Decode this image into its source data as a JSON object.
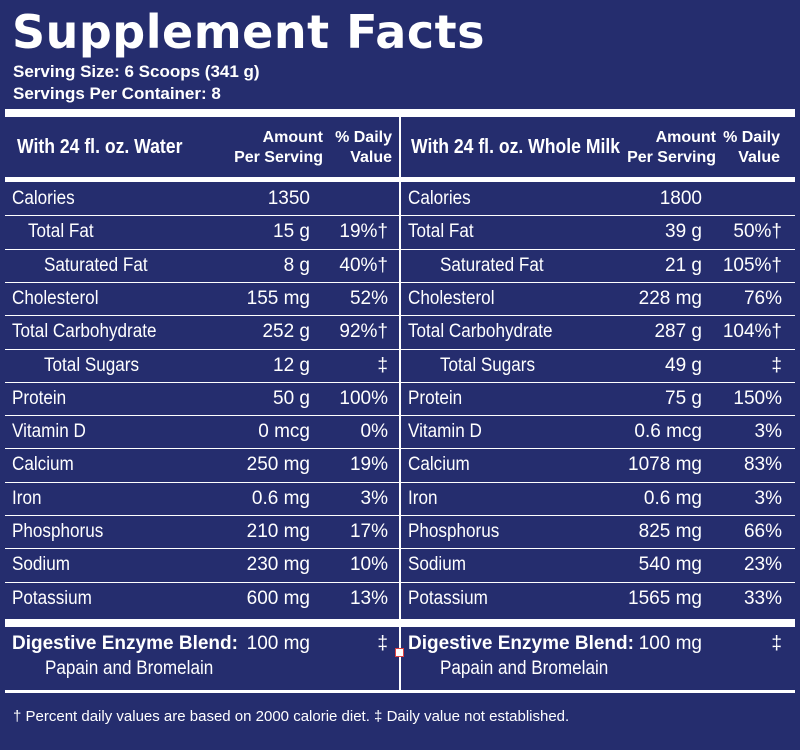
{
  "title": "Supplement Facts",
  "serving_size": "Serving Size: 6 Scoops (341 g)",
  "servings_per_container": "Servings Per Container: 8",
  "left": {
    "header": "With 24 fl. oz. Water",
    "amount_header_1": "Amount",
    "amount_header_2": "Per Serving",
    "dv_header_1": "% Daily",
    "dv_header_2": "Value",
    "rows": [
      {
        "name": "Calories",
        "amount": "1350",
        "dv": ""
      },
      {
        "name": "Total Fat",
        "amount": "15 g",
        "dv": "19%†"
      },
      {
        "name": "Saturated Fat",
        "amount": "8 g",
        "dv": "40%†"
      },
      {
        "name": "Cholesterol",
        "amount": "155 mg",
        "dv": "52%"
      },
      {
        "name": "Total Carbohydrate",
        "amount": "252 g",
        "dv": "92%†"
      },
      {
        "name": "Total Sugars",
        "amount": "12 g",
        "dv": "‡"
      },
      {
        "name": "Protein",
        "amount": "50 g",
        "dv": "100%"
      },
      {
        "name": "Vitamin D",
        "amount": "0 mcg",
        "dv": "0%"
      },
      {
        "name": "Calcium",
        "amount": "250 mg",
        "dv": "19%"
      },
      {
        "name": "Iron",
        "amount": "0.6 mg",
        "dv": "3%"
      },
      {
        "name": "Phosphorus",
        "amount": "210 mg",
        "dv": "17%"
      },
      {
        "name": "Sodium",
        "amount": "230 mg",
        "dv": "10%"
      },
      {
        "name": "Potassium",
        "amount": "600 mg",
        "dv": "13%"
      }
    ],
    "blend": {
      "name": "Digestive Enzyme Blend:",
      "amount": "100 mg",
      "dv": "‡",
      "sub": "Papain and Bromelain"
    }
  },
  "right": {
    "header": "With 24 fl. oz. Whole Milk",
    "amount_header_1": "Amount",
    "amount_header_2": "Per Serving",
    "dv_header_1": "% Daily",
    "dv_header_2": "Value",
    "rows": [
      {
        "name": "Calories",
        "amount": "1800",
        "dv": ""
      },
      {
        "name": "Total Fat",
        "amount": "39 g",
        "dv": "50%†"
      },
      {
        "name": "Saturated Fat",
        "amount": "21 g",
        "dv": "105%†"
      },
      {
        "name": "Cholesterol",
        "amount": "228 mg",
        "dv": "76%"
      },
      {
        "name": "Total Carbohydrate",
        "amount": "287 g",
        "dv": "104%†"
      },
      {
        "name": "Total Sugars",
        "amount": "49 g",
        "dv": "‡"
      },
      {
        "name": "Protein",
        "amount": "75 g",
        "dv": "150%"
      },
      {
        "name": "Vitamin D",
        "amount": "0.6 mcg",
        "dv": "3%"
      },
      {
        "name": "Calcium",
        "amount": "1078 mg",
        "dv": "83%"
      },
      {
        "name": "Iron",
        "amount": "0.6 mg",
        "dv": "3%"
      },
      {
        "name": "Phosphorus",
        "amount": "825 mg",
        "dv": "66%"
      },
      {
        "name": "Sodium",
        "amount": "540 mg",
        "dv": "23%"
      },
      {
        "name": "Potassium",
        "amount": "1565 mg",
        "dv": "33%"
      }
    ],
    "blend": {
      "name": "Digestive Enzyme Blend:",
      "amount": "100 mg",
      "dv": "‡",
      "sub": "Papain and Bromelain"
    }
  },
  "footnote": "† Percent daily values are based on 2000 calorie diet.  ‡ Daily value not established."
}
